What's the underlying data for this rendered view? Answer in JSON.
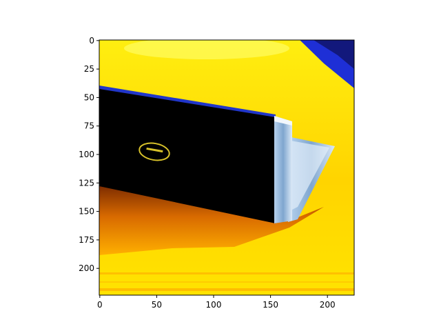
{
  "figure": {
    "x_ticks": [
      "0",
      "50",
      "100",
      "150",
      "200"
    ],
    "y_ticks": [
      "0",
      "25",
      "50",
      "75",
      "100",
      "125",
      "150",
      "175",
      "200"
    ],
    "xlim": [
      -0.5,
      223.5
    ],
    "ylim": [
      223.5,
      -0.5
    ],
    "y_axis_inverted": true,
    "image": {
      "description_colors": {
        "background": "#ffe600",
        "wood_glare": "#ffff66",
        "laptop_lid": "#000000",
        "laptop_side": "#9fc4e6",
        "screen_edge": "#cfe3f5",
        "shadow_orange": "#d46a00",
        "corner_blue": "#1a2ad8"
      }
    }
  }
}
